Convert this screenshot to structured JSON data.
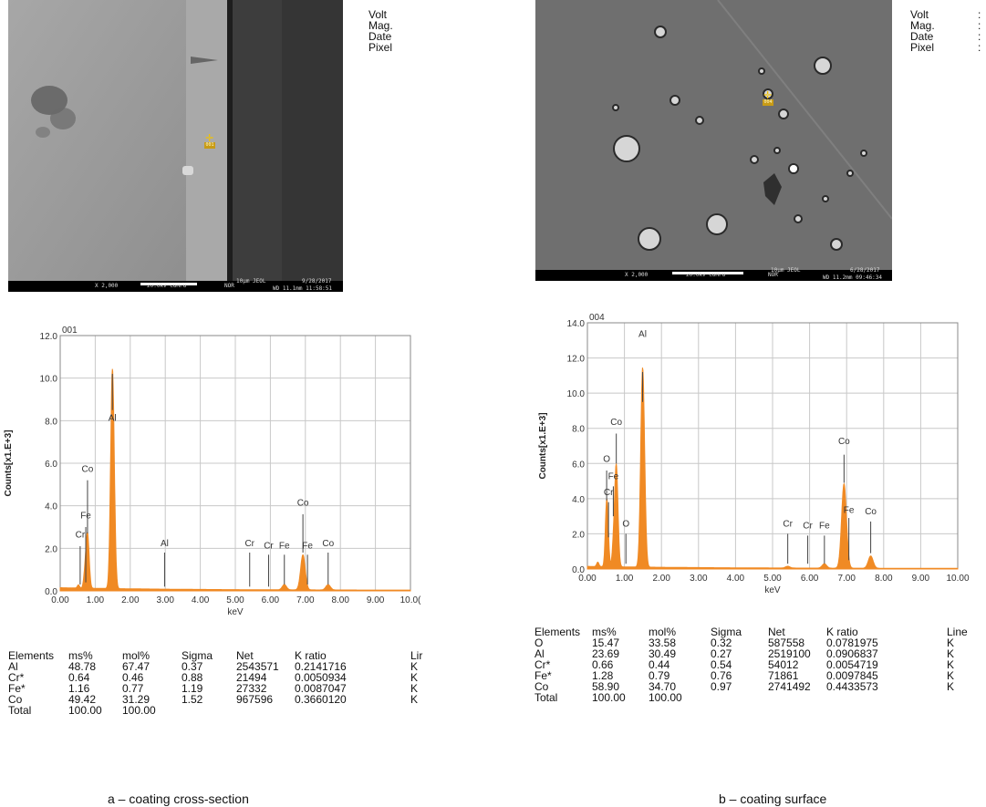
{
  "micrographs": [
    {
      "meta_labels": [
        "Volt",
        "Mag.",
        "Date",
        "Pixel"
      ],
      "scale": "10µm",
      "footer": [
        "X 2,000",
        "20.0kV COMPO",
        "NOR",
        "10µm  JEOL",
        "9/28/2017",
        "WD 11.1mm 11:58:51"
      ],
      "spot_label": "001"
    },
    {
      "meta_labels": [
        "Volt",
        "Mag.",
        "Date",
        "Pixel"
      ],
      "meta_values": [
        ":",
        ":",
        ":",
        ":"
      ],
      "scale": "10µm",
      "footer": [
        "X 2,000",
        "20.0kV COMPO",
        "NOR",
        "10µm  JEOL",
        "6/28/2017",
        "WD 11.2mm 09:46:34"
      ],
      "spot_label": "004"
    }
  ],
  "chart_data": [
    {
      "type": "line",
      "title": "001",
      "xlabel": "keV",
      "ylabel": "Counts[x1.E+3]",
      "xlim": [
        0,
        10
      ],
      "ylim": [
        0,
        12
      ],
      "x_ticks": [
        "0.00",
        "1.00",
        "2.00",
        "3.00",
        "4.00",
        "5.00",
        "6.00",
        "7.00",
        "8.00",
        "9.00",
        "10.0("
      ],
      "y_ticks": [
        "0.0",
        "2.0",
        "4.0",
        "6.0",
        "8.0",
        "10.0",
        "12.0"
      ],
      "peaks": [
        {
          "x": 0.52,
          "y": 0.15,
          "w": 0.03
        },
        {
          "x": 0.7,
          "y": 0.55,
          "w": 0.035
        },
        {
          "x": 0.78,
          "y": 2.6,
          "w": 0.045
        },
        {
          "x": 1.49,
          "y": 10.2,
          "w": 0.05
        },
        {
          "x": 1.56,
          "y": 0.6,
          "w": 0.04
        },
        {
          "x": 6.4,
          "y": 0.25,
          "w": 0.06
        },
        {
          "x": 6.93,
          "y": 1.65,
          "w": 0.065
        },
        {
          "x": 7.65,
          "y": 0.25,
          "w": 0.065
        }
      ],
      "annotations": [
        {
          "label": "Co",
          "x": 0.78,
          "line_top": 5.2,
          "line_bottom": 2.7,
          "text_y": 5.6
        },
        {
          "label": "Fe",
          "x": 0.73,
          "line_top": 3.0,
          "line_bottom": 0.4,
          "text_y": 3.4
        },
        {
          "label": "Cr",
          "x": 0.57,
          "line_top": 2.1,
          "line_bottom": 0.3,
          "text_y": 2.5
        },
        {
          "label": "Al",
          "x": 1.49,
          "line_top": 10.2,
          "line_bottom": 8.5,
          "text_y": 8.0
        },
        {
          "label": "Al",
          "x": 2.98,
          "line_top": 1.8,
          "line_bottom": 0.2,
          "text_y": 2.1
        },
        {
          "label": "Cr",
          "x": 5.41,
          "line_top": 1.8,
          "line_bottom": 0.2,
          "text_y": 2.1
        },
        {
          "label": "Cr",
          "x": 5.95,
          "line_top": 1.7,
          "line_bottom": 0.2,
          "text_y": 2.0
        },
        {
          "label": "Fe",
          "x": 6.4,
          "line_top": 1.7,
          "line_bottom": 0.3,
          "text_y": 2.0
        },
        {
          "label": "Co",
          "x": 6.93,
          "line_top": 3.6,
          "line_bottom": 1.8,
          "text_y": 4.0
        },
        {
          "label": "Fe",
          "x": 7.06,
          "line_top": 1.7,
          "line_bottom": 0.3,
          "text_y": 2.0
        },
        {
          "label": "Co",
          "x": 7.65,
          "line_top": 1.8,
          "line_bottom": 0.3,
          "text_y": 2.1
        }
      ]
    },
    {
      "type": "line",
      "title": "004",
      "xlabel": "keV",
      "ylabel": "Counts[x1.E+3]",
      "xlim": [
        0,
        10
      ],
      "ylim": [
        0,
        14
      ],
      "x_ticks": [
        "0.00",
        "1.00",
        "2.00",
        "3.00",
        "4.00",
        "5.00",
        "6.00",
        "7.00",
        "8.00",
        "9.00",
        "10.00"
      ],
      "y_ticks": [
        "0.0",
        "2.0",
        "4.0",
        "6.0",
        "8.0",
        "10.0",
        "12.0",
        "14.0"
      ],
      "peaks": [
        {
          "x": 0.28,
          "y": 0.25,
          "w": 0.03
        },
        {
          "x": 0.52,
          "y": 3.7,
          "w": 0.035
        },
        {
          "x": 0.57,
          "y": 0.6,
          "w": 0.03
        },
        {
          "x": 0.7,
          "y": 0.9,
          "w": 0.035
        },
        {
          "x": 0.78,
          "y": 5.8,
          "w": 0.045
        },
        {
          "x": 1.49,
          "y": 11.2,
          "w": 0.05
        },
        {
          "x": 1.56,
          "y": 0.7,
          "w": 0.04
        },
        {
          "x": 5.41,
          "y": 0.1,
          "w": 0.06
        },
        {
          "x": 6.4,
          "y": 0.25,
          "w": 0.06
        },
        {
          "x": 6.93,
          "y": 4.8,
          "w": 0.065
        },
        {
          "x": 7.65,
          "y": 0.7,
          "w": 0.065
        }
      ],
      "annotations": [
        {
          "label": "Al",
          "x": 1.49,
          "line_top": 11.2,
          "line_bottom": 9.5,
          "text_y": 13.2
        },
        {
          "label": "Co",
          "x": 0.78,
          "line_top": 7.7,
          "line_bottom": 6.0,
          "text_y": 8.2
        },
        {
          "label": "O",
          "x": 0.52,
          "line_top": 5.6,
          "line_bottom": 3.9,
          "text_y": 6.1
        },
        {
          "label": "Fe",
          "x": 0.7,
          "line_top": 4.7,
          "line_bottom": 3.0,
          "text_y": 5.1
        },
        {
          "label": "Cr",
          "x": 0.57,
          "line_top": 3.8,
          "line_bottom": 1.8,
          "text_y": 4.2
        },
        {
          "label": "O",
          "x": 1.04,
          "line_top": 2.0,
          "line_bottom": 0.3,
          "text_y": 2.4
        },
        {
          "label": "Cr",
          "x": 5.41,
          "line_top": 2.0,
          "line_bottom": 0.3,
          "text_y": 2.4
        },
        {
          "label": "Cr",
          "x": 5.95,
          "line_top": 1.9,
          "line_bottom": 0.3,
          "text_y": 2.3
        },
        {
          "label": "Fe",
          "x": 6.4,
          "line_top": 1.9,
          "line_bottom": 0.3,
          "text_y": 2.3
        },
        {
          "label": "Co",
          "x": 6.93,
          "line_top": 6.5,
          "line_bottom": 4.9,
          "text_y": 7.1
        },
        {
          "label": "Fe",
          "x": 7.06,
          "line_top": 2.9,
          "line_bottom": 0.5,
          "text_y": 3.2
        },
        {
          "label": "Co",
          "x": 7.65,
          "line_top": 2.7,
          "line_bottom": 0.9,
          "text_y": 3.1
        }
      ]
    }
  ],
  "tables": [
    {
      "headers": [
        "Elements",
        "ms%",
        "mol%",
        "Sigma",
        "Net",
        "K ratio",
        "Lir"
      ],
      "rows": [
        [
          "Al",
          "48.78",
          "67.47",
          "0.37",
          "2543571",
          "0.2141716",
          "K"
        ],
        [
          "Cr*",
          "0.64",
          "0.46",
          "0.88",
          "21494",
          "0.0050934",
          "K"
        ],
        [
          "Fe*",
          "1.16",
          "0.77",
          "1.19",
          "27332",
          "0.0087047",
          "K"
        ],
        [
          "Co",
          "49.42",
          "31.29",
          "1.52",
          "967596",
          "0.3660120",
          "K"
        ],
        [
          "Total",
          "100.00",
          "100.00",
          "",
          "",
          "",
          ""
        ]
      ]
    },
    {
      "headers": [
        "Elements",
        "ms%",
        "mol%",
        "Sigma",
        "Net",
        "K ratio",
        "Line"
      ],
      "rows": [
        [
          "O",
          "15.47",
          "33.58",
          "0.32",
          "587558",
          "0.0781975",
          "K"
        ],
        [
          "Al",
          "23.69",
          "30.49",
          "0.27",
          "2519100",
          "0.0906837",
          "K"
        ],
        [
          "Cr*",
          "0.66",
          "0.44",
          "0.54",
          "54012",
          "0.0054719",
          "K"
        ],
        [
          "Fe*",
          "1.28",
          "0.79",
          "0.76",
          "71861",
          "0.0097845",
          "K"
        ],
        [
          "Co",
          "58.90",
          "34.70",
          "0.97",
          "2741492",
          "0.4433573",
          "K"
        ],
        [
          "Total",
          "100.00",
          "100.00",
          "",
          "",
          "",
          ""
        ]
      ]
    }
  ],
  "captions": [
    "a – coating cross-section",
    "b – coating surface"
  ],
  "colors": {
    "spectrum": "#f08a24",
    "grid": "#c8c8c8",
    "axis": "#888888",
    "marker": "#444444"
  }
}
